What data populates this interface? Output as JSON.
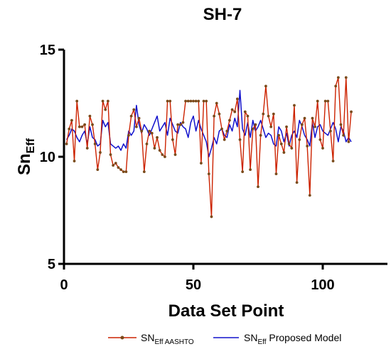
{
  "chart_data": {
    "type": "line",
    "title": "SH-7",
    "xlabel": "Data Set Point",
    "ylabel": {
      "main": "Sn",
      "sub": "Eff"
    },
    "xlim": [
      0,
      125
    ],
    "ylim": [
      5,
      15
    ],
    "xticks": [
      0,
      50,
      100
    ],
    "yticks": [
      5,
      10,
      15
    ],
    "grid": false,
    "legend_position": "bottom",
    "series": [
      {
        "name": {
          "main": "SN",
          "sub": "Eff AASHTO"
        },
        "color": "#cc2200",
        "marker_color": "#7a4a1a",
        "values": [
          10.6,
          11.3,
          11.7,
          9.8,
          12.6,
          11.4,
          11.4,
          11.5,
          10.4,
          11.9,
          11.5,
          10.6,
          9.4,
          10.2,
          12.6,
          12.2,
          12.6,
          10.1,
          9.6,
          9.7,
          9.5,
          9.4,
          9.3,
          9.3,
          11.0,
          11.9,
          12.2,
          11.4,
          11.8,
          11.2,
          9.3,
          10.6,
          11.2,
          11.1,
          10.4,
          10.9,
          10.3,
          10.1,
          10.0,
          12.6,
          12.6,
          10.8,
          10.1,
          11.5,
          11.5,
          11.6,
          12.6,
          12.6,
          12.6,
          12.6,
          12.6,
          12.6,
          9.7,
          12.6,
          12.6,
          9.2,
          7.2,
          11.9,
          12.5,
          12.0,
          11.3,
          10.8,
          11.2,
          11.7,
          12.2,
          12.1,
          12.7,
          10.8,
          9.3,
          12.1,
          11.9,
          9.4,
          11.3,
          11.5,
          8.6,
          11.0,
          12.0,
          13.3,
          11.9,
          11.4,
          12.0,
          9.2,
          11.0,
          10.6,
          10.2,
          11.4,
          10.6,
          10.4,
          12.4,
          8.8,
          10.8,
          11.5,
          11.8,
          10.5,
          8.2,
          11.8,
          11.4,
          12.6,
          10.8,
          10.4,
          12.6,
          12.6,
          11.2,
          9.8,
          13.3,
          13.7,
          11.5,
          11.0,
          13.7,
          10.7,
          12.1
        ]
      },
      {
        "name": {
          "main": "SN",
          "sub": "Eff",
          "rest": " Proposed Model"
        },
        "color": "#1010cc",
        "values": [
          10.8,
          11.0,
          11.3,
          11.2,
          10.9,
          10.7,
          11.0,
          11.2,
          10.6,
          11.4,
          10.9,
          10.8,
          10.5,
          10.6,
          11.7,
          11.4,
          11.6,
          10.6,
          10.5,
          10.4,
          10.5,
          10.3,
          10.6,
          10.4,
          11.2,
          11.0,
          11.2,
          12.4,
          11.5,
          11.1,
          11.5,
          11.3,
          11.0,
          11.3,
          11.6,
          11.9,
          11.2,
          11.4,
          11.6,
          11.0,
          11.8,
          11.5,
          11.2,
          11.1,
          11.6,
          11.4,
          11.3,
          10.9,
          11.6,
          11.9,
          11.2,
          11.7,
          11.3,
          11.0,
          10.7,
          10.0,
          10.4,
          10.9,
          10.6,
          11.2,
          11.3,
          11.0,
          10.9,
          11.5,
          11.2,
          11.8,
          11.4,
          13.1,
          11.3,
          11.0,
          11.6,
          10.9,
          11.7,
          11.2,
          11.4,
          11.7,
          11.3,
          10.9,
          11.1,
          11.0,
          10.6,
          10.5,
          11.4,
          11.2,
          10.7,
          11.1,
          10.5,
          11.0,
          11.2,
          10.9,
          11.7,
          11.4,
          11.0,
          10.8,
          10.5,
          11.6,
          10.9,
          11.4,
          11.5,
          11.2,
          11.1,
          11.0,
          11.3,
          11.6,
          11.3,
          10.7,
          11.4,
          11.2,
          10.7,
          10.9,
          10.7
        ]
      }
    ]
  }
}
